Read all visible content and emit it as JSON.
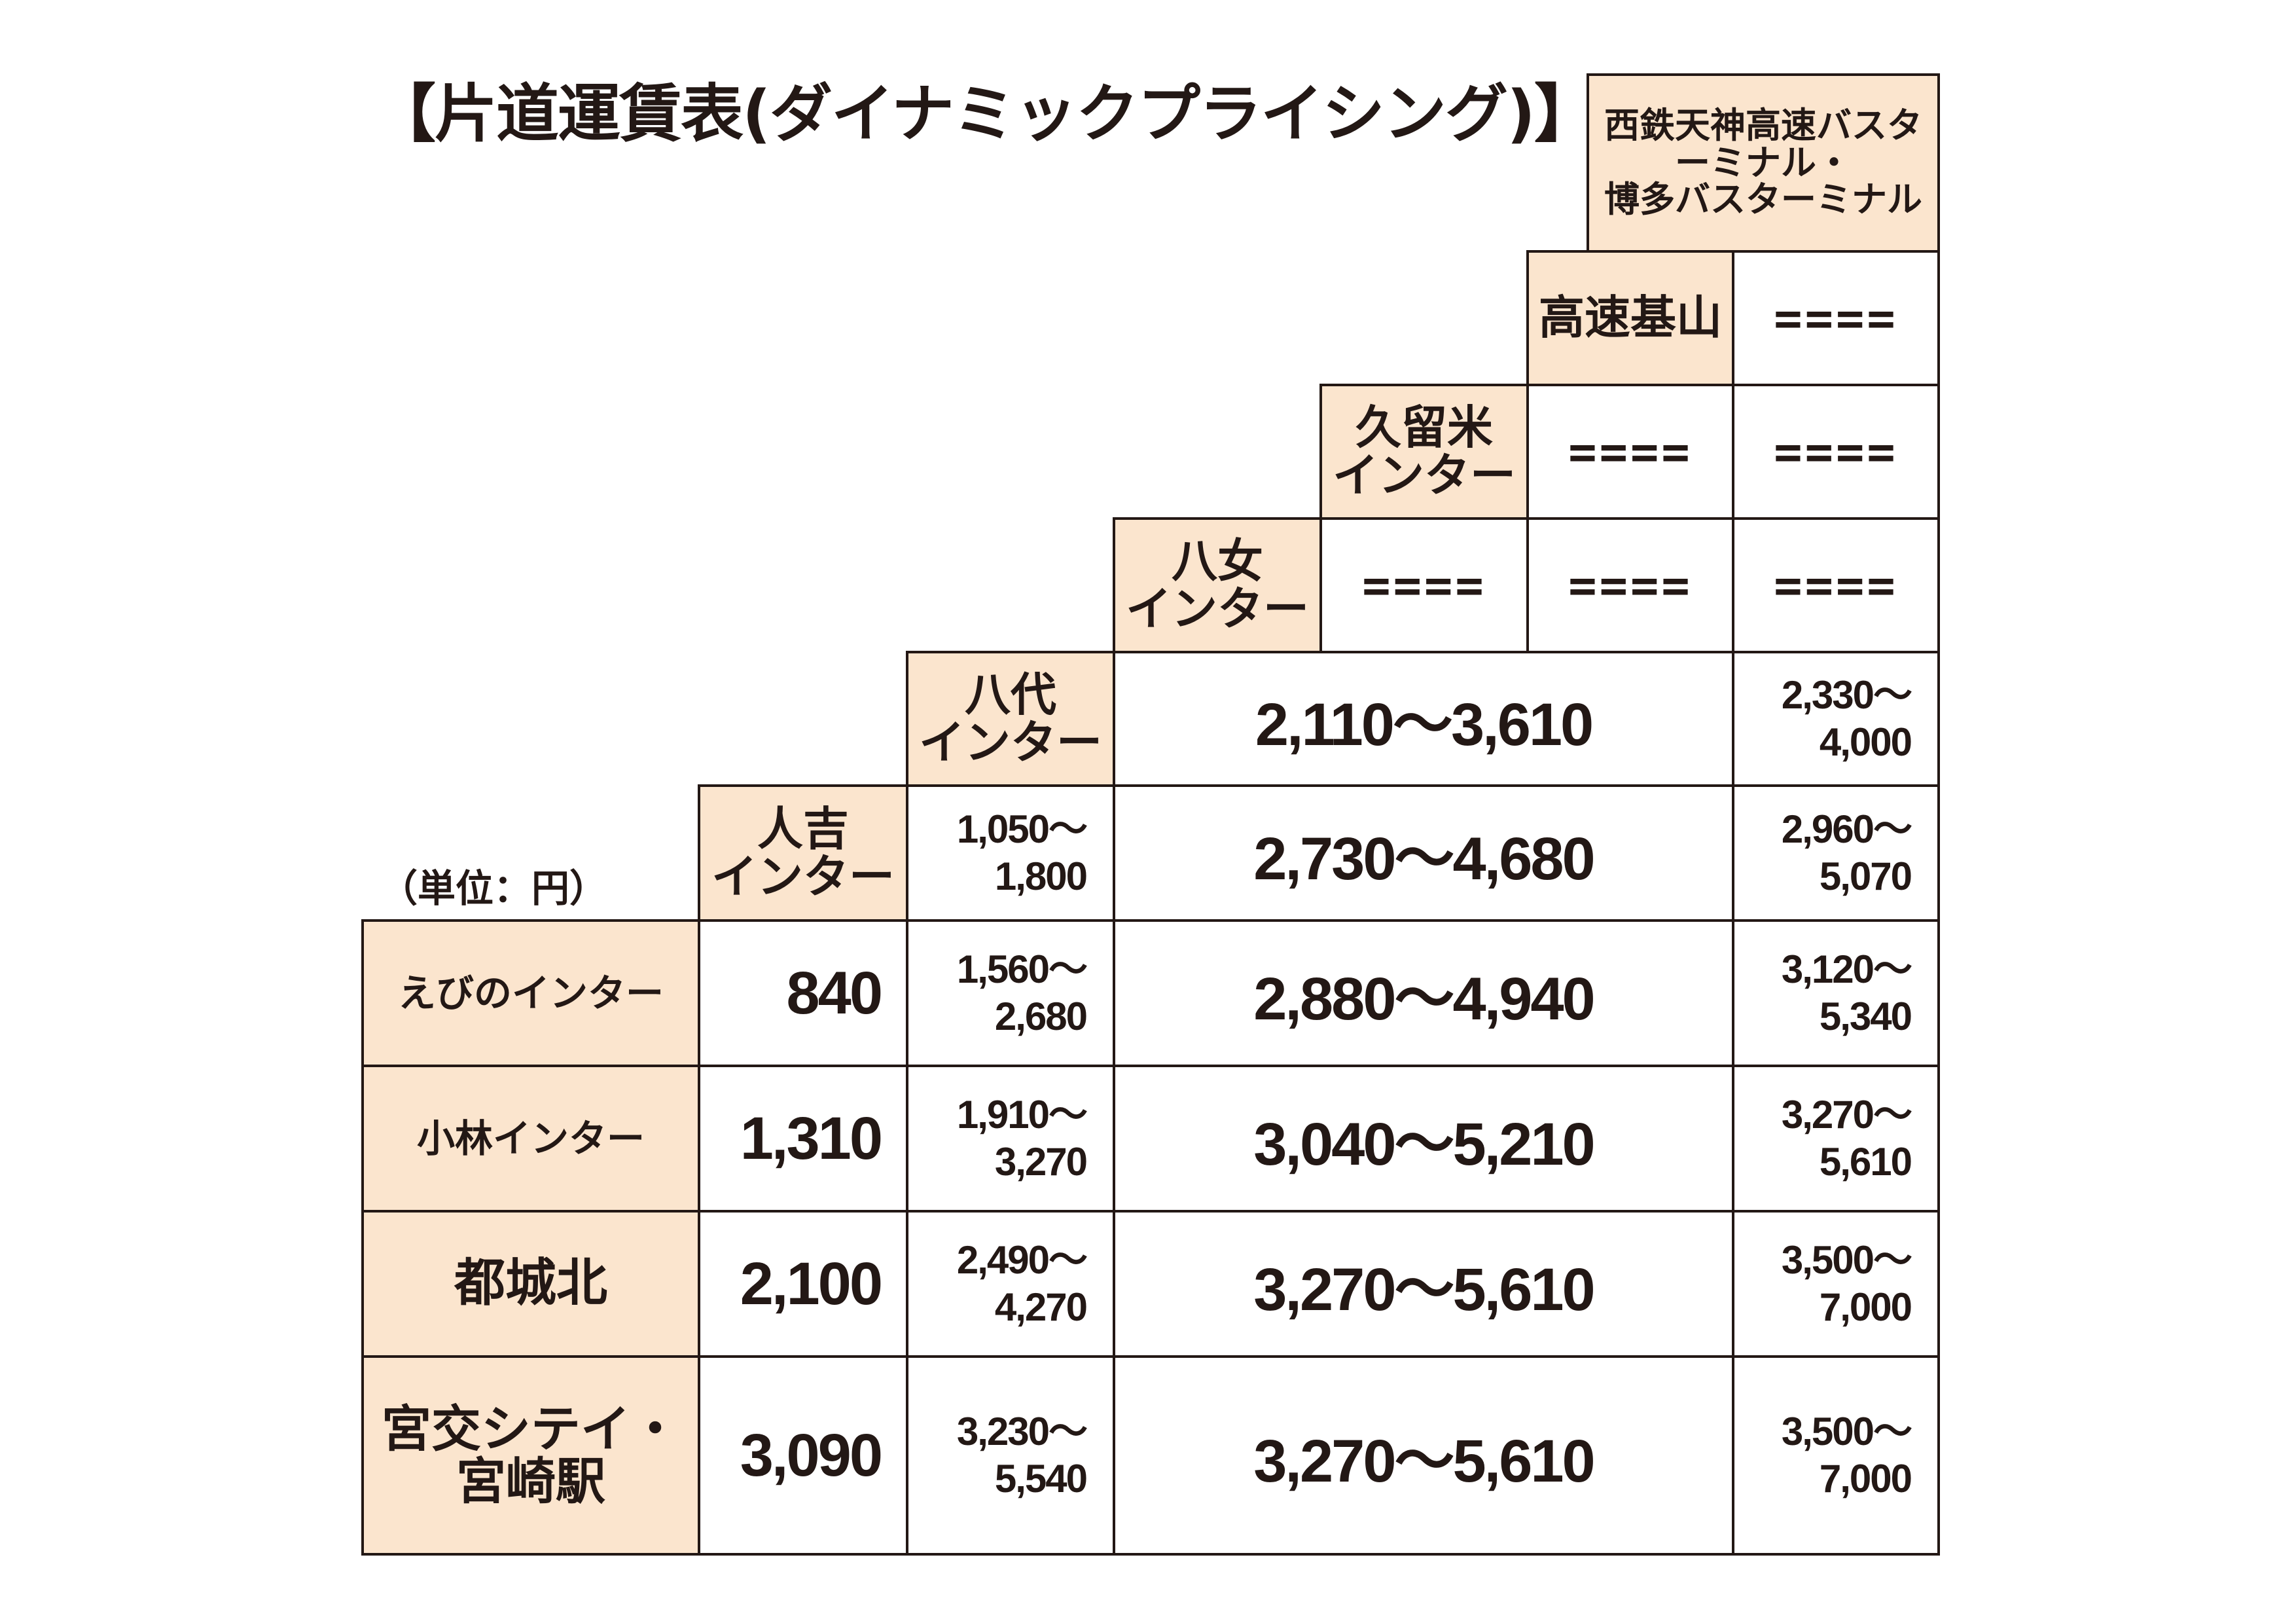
{
  "title": "【片道運賃表(ダイナミックプライシング)】",
  "unit_label": "（単位：円）",
  "colors": {
    "header_bg": "#fbe5ce",
    "border": "#231815",
    "text": "#231815"
  },
  "dash": "====",
  "headers": {
    "fukuoka": "西鉄天神高速バスターミナル・\n博多バスターミナル",
    "kiyama": "高速基山",
    "kurume": "久留米\nインター",
    "yame": "八女\nインター",
    "yatsushiro": "八代\nインター",
    "hitoyoshi": "人吉\nインター"
  },
  "origins": {
    "ebino": "えびのインター",
    "kobayashi": "小林インター",
    "miyakonojo": "都城北",
    "miyazaki": "宮交シテイ・\n宮崎駅"
  },
  "fares": {
    "yatsushiro": {
      "middle": "2,110〜3,610",
      "fukuoka_from": "2,330〜",
      "fukuoka_to": "4,000"
    },
    "hitoyoshi": {
      "yatsushiro_from": "1,050〜",
      "yatsushiro_to": "1,800",
      "middle": "2,730〜4,680",
      "fukuoka_from": "2,960〜",
      "fukuoka_to": "5,070"
    },
    "ebino": {
      "hitoyoshi": "840",
      "yatsushiro_from": "1,560〜",
      "yatsushiro_to": "2,680",
      "middle": "2,880〜4,940",
      "fukuoka_from": "3,120〜",
      "fukuoka_to": "5,340"
    },
    "kobayashi": {
      "hitoyoshi": "1,310",
      "yatsushiro_from": "1,910〜",
      "yatsushiro_to": "3,270",
      "middle": "3,040〜5,210",
      "fukuoka_from": "3,270〜",
      "fukuoka_to": "5,610"
    },
    "miyakonojo": {
      "hitoyoshi": "2,100",
      "yatsushiro_from": "2,490〜",
      "yatsushiro_to": "4,270",
      "middle": "3,270〜5,610",
      "fukuoka_from": "3,500〜",
      "fukuoka_to": "7,000"
    },
    "miyazaki": {
      "hitoyoshi": "3,090",
      "yatsushiro_from": "3,230〜",
      "yatsushiro_to": "5,540",
      "middle": "3,270〜5,610",
      "fukuoka_from": "3,500〜",
      "fukuoka_to": "7,000"
    }
  }
}
